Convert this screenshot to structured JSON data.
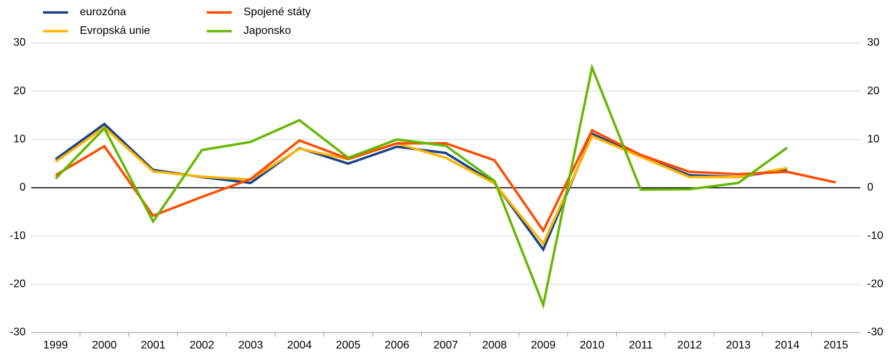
{
  "chart_data": {
    "type": "line",
    "categories": [
      "1999",
      "2000",
      "2001",
      "2002",
      "2003",
      "2004",
      "2005",
      "2006",
      "2007",
      "2008",
      "2009",
      "2010",
      "2011",
      "2012",
      "2013",
      "2014",
      "2015"
    ],
    "series": [
      {
        "name": "eurozóna",
        "color": "#17428c",
        "values": [
          5.9,
          13.2,
          3.7,
          2.2,
          1.0,
          8.2,
          5.0,
          8.5,
          7.2,
          1.0,
          -12.8,
          11.2,
          6.5,
          2.6,
          2.2,
          3.8,
          null
        ]
      },
      {
        "name": "Evropská unie",
        "color": "#ffb400",
        "values": [
          5.4,
          12.5,
          3.4,
          2.3,
          1.7,
          8.1,
          5.9,
          9.2,
          6.2,
          0.9,
          -11.6,
          10.7,
          6.4,
          2.2,
          2.2,
          4.1,
          null
        ]
      },
      {
        "name": "Spojené státy",
        "color": "#ff4b00",
        "values": [
          2.6,
          8.6,
          -5.8,
          -1.9,
          1.8,
          9.8,
          6.0,
          9.2,
          9.2,
          5.7,
          -8.9,
          11.9,
          6.8,
          3.3,
          2.8,
          3.3,
          1.1
        ]
      },
      {
        "name": "Japonsko",
        "color": "#65b800",
        "values": [
          1.9,
          12.3,
          -7.0,
          7.8,
          9.5,
          14.0,
          6.2,
          10.0,
          8.7,
          1.4,
          -24.3,
          24.9,
          -0.4,
          -0.3,
          1.0,
          8.3,
          null
        ]
      }
    ],
    "ylim": [
      -30,
      30
    ],
    "yticks": [
      -30,
      -20,
      -10,
      0,
      10,
      20,
      30
    ],
    "y2lim": [
      -30,
      30
    ],
    "y2ticks": [
      -30,
      -20,
      -10,
      0,
      10,
      20,
      30
    ],
    "grid": true
  }
}
